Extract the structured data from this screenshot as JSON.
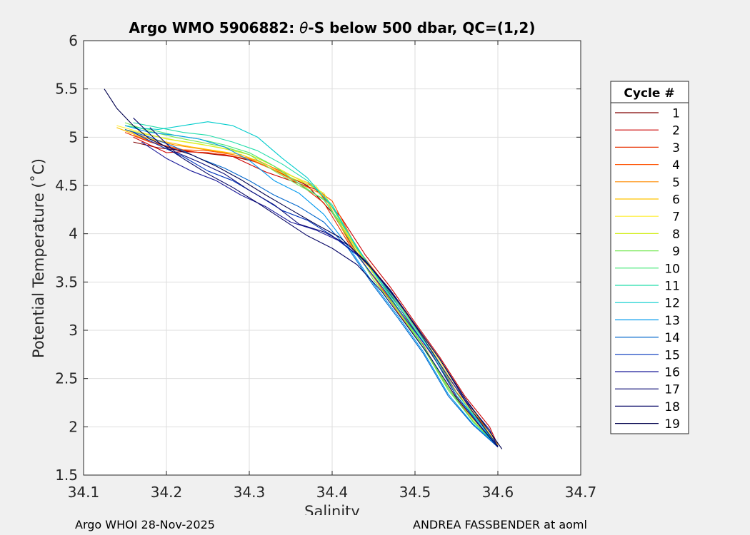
{
  "chart_data": {
    "type": "line",
    "title_prefix": "Argo WMO 5906882: ",
    "title_symbol": "θ",
    "title_suffix": "-S below 500 dbar,  QC=(1,2)",
    "xlabel": "Salinity",
    "ylabel": "Potential Temperature (˚C)",
    "xlim": [
      34.1,
      34.7
    ],
    "ylim": [
      1.5,
      6
    ],
    "xticks": [
      34.1,
      34.2,
      34.3,
      34.4,
      34.5,
      34.6,
      34.7
    ],
    "xtick_labels": [
      "34.1",
      "34.2",
      "34.3",
      "34.4",
      "34.5",
      "34.6",
      "34.7"
    ],
    "yticks": [
      1.5,
      2,
      2.5,
      3,
      3.5,
      4,
      4.5,
      5,
      5.5,
      6
    ],
    "ytick_labels": [
      "1.5",
      "2",
      "2.5",
      "3",
      "3.5",
      "4",
      "4.5",
      "5",
      "5.5",
      "6"
    ],
    "grid": true,
    "legend_title": "Cycle #",
    "legend_position": "outside-right",
    "series": [
      {
        "name": "1",
        "color": "#800000",
        "x": [
          34.16,
          34.19,
          34.22,
          34.25,
          34.28,
          34.31,
          34.34,
          34.37,
          34.4,
          34.43,
          34.46,
          34.49,
          34.52,
          34.55,
          34.58,
          34.6
        ],
        "y": [
          4.95,
          4.89,
          4.86,
          4.83,
          4.8,
          4.74,
          4.62,
          4.5,
          4.22,
          3.8,
          3.5,
          3.12,
          2.75,
          2.35,
          2.05,
          1.8
        ]
      },
      {
        "name": "2",
        "color": "#cc0000",
        "x": [
          34.16,
          34.18,
          34.2,
          34.22,
          34.25,
          34.28,
          34.3,
          34.32,
          34.35,
          34.38,
          34.41,
          34.44,
          34.47,
          34.5,
          34.53,
          34.56,
          34.59,
          34.6
        ],
        "y": [
          5.0,
          4.92,
          4.84,
          4.85,
          4.84,
          4.8,
          4.72,
          4.64,
          4.55,
          4.46,
          4.18,
          3.78,
          3.45,
          3.08,
          2.72,
          2.32,
          2.0,
          1.81
        ]
      },
      {
        "name": "3",
        "color": "#e83000",
        "x": [
          34.15,
          34.18,
          34.21,
          34.24,
          34.27,
          34.3,
          34.33,
          34.36,
          34.39,
          34.42,
          34.45,
          34.48,
          34.51,
          34.54,
          34.57,
          34.6
        ],
        "y": [
          5.05,
          4.95,
          4.88,
          4.84,
          4.82,
          4.77,
          4.66,
          4.52,
          4.32,
          3.9,
          3.55,
          3.2,
          2.85,
          2.4,
          2.08,
          1.8
        ]
      },
      {
        "name": "4",
        "color": "#ff5200",
        "x": [
          34.16,
          34.19,
          34.22,
          34.25,
          34.28,
          34.31,
          34.34,
          34.37,
          34.4,
          34.43,
          34.46,
          34.49,
          34.52,
          34.55,
          34.58,
          34.6
        ],
        "y": [
          5.02,
          4.93,
          4.87,
          4.86,
          4.82,
          4.76,
          4.64,
          4.53,
          4.34,
          3.85,
          3.52,
          3.16,
          2.78,
          2.36,
          2.04,
          1.8
        ]
      },
      {
        "name": "5",
        "color": "#ff8c00",
        "x": [
          34.15,
          34.18,
          34.21,
          34.24,
          34.27,
          34.3,
          34.33,
          34.36,
          34.39,
          34.42,
          34.45,
          34.48,
          34.51,
          34.54,
          34.57,
          34.6
        ],
        "y": [
          5.08,
          4.98,
          4.92,
          4.88,
          4.84,
          4.78,
          4.66,
          4.52,
          4.4,
          3.92,
          3.55,
          3.18,
          2.82,
          2.4,
          2.06,
          1.8
        ]
      },
      {
        "name": "6",
        "color": "#ffc300",
        "x": [
          34.14,
          34.17,
          34.2,
          34.23,
          34.26,
          34.29,
          34.32,
          34.35,
          34.38,
          34.41,
          34.44,
          34.47,
          34.5,
          34.53,
          34.56,
          34.59,
          34.6
        ],
        "y": [
          5.1,
          5.0,
          4.95,
          4.9,
          4.86,
          4.82,
          4.72,
          4.58,
          4.48,
          4.1,
          3.7,
          3.4,
          3.05,
          2.7,
          2.28,
          1.95,
          1.81
        ]
      },
      {
        "name": "7",
        "color": "#ffee33",
        "x": [
          34.14,
          34.17,
          34.2,
          34.23,
          34.26,
          34.29,
          34.32,
          34.35,
          34.38,
          34.41,
          34.44,
          34.47,
          34.5,
          34.53,
          34.56,
          34.59,
          34.6
        ],
        "y": [
          5.12,
          5.05,
          4.98,
          4.94,
          4.9,
          4.85,
          4.75,
          4.6,
          4.5,
          4.15,
          3.72,
          3.4,
          3.03,
          2.68,
          2.25,
          1.93,
          1.8
        ]
      },
      {
        "name": "8",
        "color": "#d4ee22",
        "x": [
          34.15,
          34.18,
          34.21,
          34.24,
          34.27,
          34.3,
          34.33,
          34.36,
          34.39,
          34.42,
          34.45,
          34.48,
          34.51,
          34.54,
          34.57,
          34.6
        ],
        "y": [
          5.08,
          5.02,
          4.97,
          4.93,
          4.88,
          4.82,
          4.7,
          4.56,
          4.42,
          3.98,
          3.58,
          3.2,
          2.84,
          2.42,
          2.08,
          1.8
        ]
      },
      {
        "name": "9",
        "color": "#77e855",
        "x": [
          34.15,
          34.18,
          34.21,
          34.24,
          34.27,
          34.3,
          34.33,
          34.36,
          34.39,
          34.42,
          34.45,
          34.48,
          34.51,
          34.54,
          34.57,
          34.6
        ],
        "y": [
          5.15,
          5.06,
          5.0,
          4.95,
          4.9,
          4.82,
          4.65,
          4.5,
          4.36,
          3.95,
          3.52,
          3.2,
          2.82,
          2.38,
          2.06,
          1.8
        ]
      },
      {
        "name": "10",
        "color": "#44e877",
        "x": [
          34.15,
          34.18,
          34.21,
          34.24,
          34.27,
          34.3,
          34.33,
          34.36,
          34.39,
          34.42,
          34.45,
          34.48,
          34.51,
          34.54,
          34.57,
          34.6
        ],
        "y": [
          5.12,
          5.08,
          5.02,
          4.98,
          4.92,
          4.84,
          4.7,
          4.52,
          4.35,
          4.0,
          3.6,
          3.22,
          2.84,
          2.4,
          2.05,
          1.8
        ]
      },
      {
        "name": "11",
        "color": "#22ddaa",
        "x": [
          34.16,
          34.19,
          34.22,
          34.25,
          34.28,
          34.31,
          34.34,
          34.37,
          34.4,
          34.43,
          34.46,
          34.49,
          34.52,
          34.55,
          34.58,
          34.6
        ],
        "y": [
          5.15,
          5.1,
          5.05,
          5.02,
          4.95,
          4.86,
          4.72,
          4.55,
          4.3,
          3.85,
          3.5,
          3.15,
          2.78,
          2.35,
          2.02,
          1.8
        ]
      },
      {
        "name": "12",
        "color": "#00cccc",
        "x": [
          34.16,
          34.19,
          34.22,
          34.25,
          34.28,
          34.31,
          34.34,
          34.37,
          34.4,
          34.43,
          34.46,
          34.49,
          34.52,
          34.55,
          34.58,
          34.6
        ],
        "y": [
          5.1,
          5.08,
          5.12,
          5.16,
          5.12,
          5.0,
          4.78,
          4.58,
          4.28,
          3.86,
          3.48,
          3.13,
          2.76,
          2.32,
          2.02,
          1.79
        ]
      },
      {
        "name": "13",
        "color": "#0099ee",
        "x": [
          34.15,
          34.18,
          34.21,
          34.24,
          34.27,
          34.3,
          34.33,
          34.36,
          34.39,
          34.42,
          34.45,
          34.48,
          34.51,
          34.54,
          34.57,
          34.6
        ],
        "y": [
          5.12,
          5.05,
          5.02,
          4.98,
          4.9,
          4.76,
          4.55,
          4.42,
          4.2,
          3.86,
          3.48,
          3.14,
          2.78,
          2.34,
          2.03,
          1.8
        ]
      },
      {
        "name": "14",
        "color": "#0066cc",
        "x": [
          34.15,
          34.18,
          34.21,
          34.24,
          34.27,
          34.3,
          34.33,
          34.36,
          34.39,
          34.42,
          34.45,
          34.48,
          34.51,
          34.54,
          34.57,
          34.6
        ],
        "y": [
          5.08,
          5.0,
          4.9,
          4.78,
          4.68,
          4.55,
          4.4,
          4.28,
          4.12,
          3.84,
          3.46,
          3.12,
          2.76,
          2.32,
          2.02,
          1.79
        ]
      },
      {
        "name": "15",
        "color": "#0033bb",
        "x": [
          34.16,
          34.19,
          34.22,
          34.25,
          34.28,
          34.31,
          34.34,
          34.37,
          34.4,
          34.43,
          34.46,
          34.49,
          34.52,
          34.55,
          34.58,
          34.6
        ],
        "y": [
          5.05,
          4.92,
          4.8,
          4.65,
          4.55,
          4.4,
          4.24,
          4.14,
          3.98,
          3.78,
          3.45,
          3.1,
          2.76,
          2.32,
          2.0,
          1.79
        ]
      },
      {
        "name": "16",
        "color": "#1a1a99",
        "x": [
          34.17,
          34.2,
          34.23,
          34.26,
          34.29,
          34.32,
          34.35,
          34.38,
          34.41,
          34.44,
          34.47,
          34.5,
          34.53,
          34.56,
          34.59,
          34.6
        ],
        "y": [
          4.95,
          4.78,
          4.65,
          4.55,
          4.4,
          4.28,
          4.12,
          4.04,
          3.92,
          3.72,
          3.4,
          3.06,
          2.7,
          2.28,
          1.97,
          1.79
        ]
      },
      {
        "name": "17",
        "color": "#0d0d77",
        "x": [
          34.18,
          34.21,
          34.24,
          34.27,
          34.3,
          34.33,
          34.36,
          34.39,
          34.42,
          34.45,
          34.48,
          34.51,
          34.54,
          34.57,
          34.6
        ],
        "y": [
          5.1,
          4.85,
          4.74,
          4.62,
          4.45,
          4.3,
          4.1,
          4.02,
          3.88,
          3.62,
          3.3,
          2.92,
          2.52,
          2.15,
          1.8
        ]
      },
      {
        "name": "18",
        "color": "#060666",
        "x": [
          34.16,
          34.19,
          34.22,
          34.25,
          34.28,
          34.31,
          34.34,
          34.37,
          34.4,
          34.43,
          34.46,
          34.49,
          34.52,
          34.55,
          34.58,
          34.6
        ],
        "y": [
          5.2,
          4.95,
          4.78,
          4.62,
          4.48,
          4.32,
          4.15,
          3.98,
          3.85,
          3.68,
          3.4,
          3.05,
          2.7,
          2.3,
          1.99,
          1.79
        ]
      },
      {
        "name": "19",
        "color": "#00004d",
        "x": [
          34.125,
          34.14,
          34.16,
          34.18,
          34.2,
          34.23,
          34.26,
          34.29,
          34.32,
          34.35,
          34.38,
          34.41,
          34.44,
          34.47,
          34.5,
          34.53,
          34.56,
          34.59,
          34.605
        ],
        "y": [
          5.5,
          5.3,
          5.12,
          4.98,
          4.9,
          4.82,
          4.7,
          4.56,
          4.4,
          4.25,
          4.1,
          3.96,
          3.72,
          3.42,
          3.06,
          2.7,
          2.3,
          1.95,
          1.77
        ]
      }
    ]
  },
  "footer": {
    "left": "Argo WHOI 28-Nov-2025",
    "right": "ANDREA FASSBENDER at aoml"
  }
}
